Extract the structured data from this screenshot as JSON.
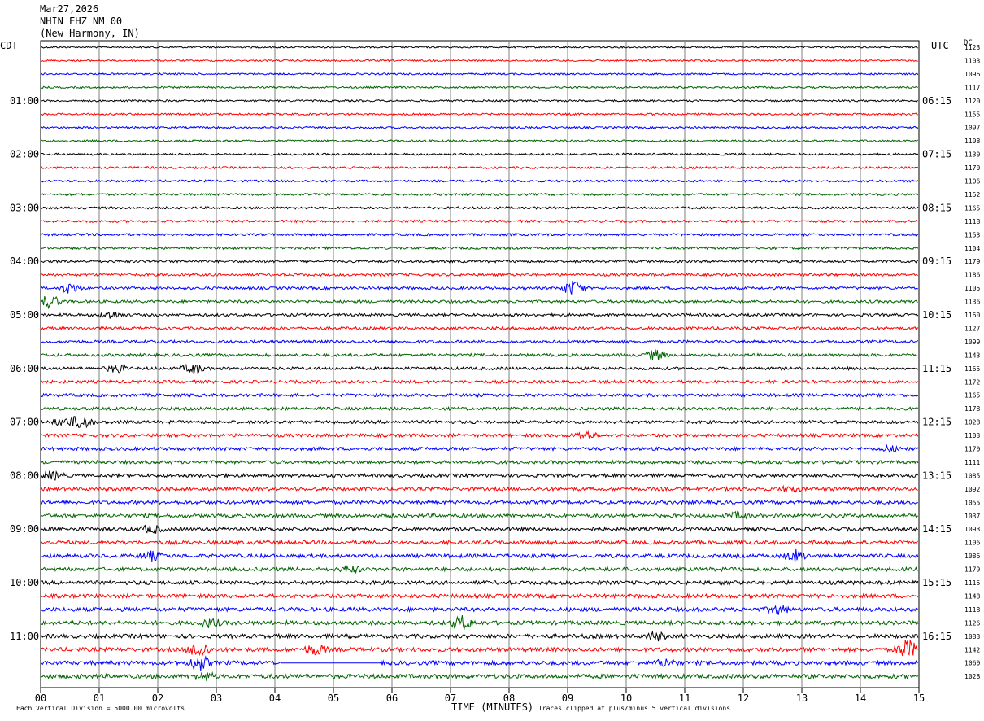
{
  "header": {
    "date": "Mar27,2026",
    "station": "NHIN EHZ NM 00",
    "location": "(New Harmony, IN)"
  },
  "axes": {
    "left_label": "CDT",
    "right_label": "UTC",
    "dc_label": "DC",
    "x_title": "TIME (MINUTES)",
    "x_ticks": [
      "00",
      "01",
      "02",
      "03",
      "04",
      "05",
      "06",
      "07",
      "08",
      "09",
      "10",
      "11",
      "12",
      "13",
      "14",
      "15"
    ]
  },
  "footer": {
    "left": "Each Vertical Division = 5000.00 microvolts",
    "right": "Traces clipped at plus/minus 5 vertical divisions"
  },
  "colors": {
    "trace_cycle": [
      "#000000",
      "#ff0000",
      "#0000ff",
      "#006400"
    ],
    "grid": "#7f7f7f"
  },
  "chart_data": {
    "type": "line",
    "title": "",
    "xlabel": "TIME (MINUTES)",
    "ylabel": "",
    "xlim": [
      0,
      15
    ],
    "grid": true,
    "row_count": 48,
    "minutes_per_row": 15,
    "left_hour_labels": [
      "01:00",
      "02:00",
      "03:00",
      "04:00",
      "05:00",
      "06:00",
      "07:00",
      "08:00",
      "09:00",
      "10:00",
      "11:00"
    ],
    "right_hour_labels": [
      "06:15",
      "07:15",
      "08:15",
      "09:15",
      "10:15",
      "11:15",
      "12:15",
      "13:15",
      "14:15",
      "15:15",
      "16:15"
    ],
    "dc_offsets": [
      "1123",
      "1103",
      "1096",
      "1117",
      "1120",
      "1155",
      "1097",
      "1108",
      "1130",
      "1170",
      "1106",
      "1152",
      "1165",
      "1118",
      "1153",
      "1104",
      "1179",
      "1186",
      "1105",
      "1136",
      "1160",
      "1127",
      "1099",
      "1143",
      "1165",
      "1172",
      "1165",
      "1178",
      "1028",
      "1103",
      "1170",
      "1111",
      "1085",
      "1092",
      "1055",
      "1037",
      "1093",
      "1106",
      "1086",
      "1179",
      "1115",
      "1148",
      "1118",
      "1126",
      "1083",
      "1142",
      "1060",
      "1028"
    ],
    "event_bursts": [
      {
        "row": 18,
        "minute": 0.5,
        "level": 4
      },
      {
        "row": 18,
        "minute": 9.1,
        "level": 6
      },
      {
        "row": 19,
        "minute": 0.15,
        "level": 5
      },
      {
        "row": 20,
        "minute": 1.2,
        "level": 3
      },
      {
        "row": 23,
        "minute": 10.5,
        "level": 4
      },
      {
        "row": 24,
        "minute": 2.6,
        "level": 4
      },
      {
        "row": 24,
        "minute": 1.3,
        "level": 3
      },
      {
        "row": 28,
        "minute": 0.7,
        "level": 5
      },
      {
        "row": 28,
        "minute": 0.4,
        "level": 3
      },
      {
        "row": 29,
        "minute": 9.3,
        "level": 3
      },
      {
        "row": 30,
        "minute": 14.5,
        "level": 2
      },
      {
        "row": 32,
        "minute": 0.2,
        "level": 3
      },
      {
        "row": 33,
        "minute": 12.8,
        "level": 2
      },
      {
        "row": 35,
        "minute": 11.9,
        "level": 2
      },
      {
        "row": 36,
        "minute": 1.9,
        "level": 3
      },
      {
        "row": 38,
        "minute": 12.9,
        "level": 4
      },
      {
        "row": 38,
        "minute": 1.9,
        "level": 3
      },
      {
        "row": 39,
        "minute": 5.3,
        "level": 2
      },
      {
        "row": 42,
        "minute": 12.6,
        "level": 3
      },
      {
        "row": 43,
        "minute": 7.2,
        "level": 5
      },
      {
        "row": 43,
        "minute": 2.9,
        "level": 3
      },
      {
        "row": 44,
        "minute": 10.5,
        "level": 3
      },
      {
        "row": 45,
        "minute": 2.7,
        "level": 6
      },
      {
        "row": 45,
        "minute": 14.8,
        "level": 7
      },
      {
        "row": 45,
        "minute": 4.7,
        "level": 4
      },
      {
        "row": 46,
        "minute": 2.7,
        "level": 6
      },
      {
        "row": 46,
        "minute": 10.7,
        "level": 3
      },
      {
        "row": 47,
        "minute": 2.8,
        "level": 3
      }
    ],
    "flatline": {
      "row": 46,
      "minute_start": 4.1,
      "minute_end": 5.8
    }
  }
}
